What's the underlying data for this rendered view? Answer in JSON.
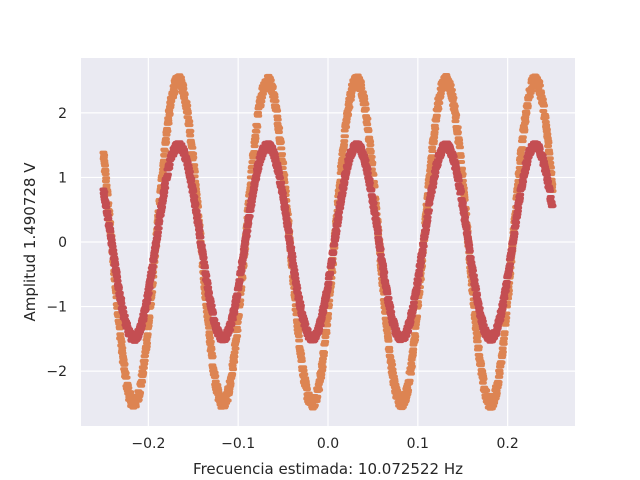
{
  "chart_data": {
    "type": "scatter",
    "title": "",
    "xlabel": "Frecuencia estimada: 10.072522 Hz",
    "ylabel": "Amplitud 1.490728 V",
    "xlim": [
      -0.275,
      0.275
    ],
    "ylim": [
      -2.85,
      2.85
    ],
    "x_ticks": [
      -0.2,
      -0.1,
      0.0,
      0.1,
      0.2
    ],
    "x_tick_labels": [
      "−0.2",
      "−0.1",
      "0.0",
      "0.1",
      "0.2"
    ],
    "y_ticks": [
      -2,
      -1,
      0,
      1,
      2
    ],
    "y_tick_labels": [
      "−2",
      "−1",
      "0",
      "1",
      "2"
    ],
    "grid": true,
    "legend": "none",
    "x_range": [
      -0.25,
      0.25
    ],
    "series": [
      {
        "model": "sine",
        "amplitude": 2.5,
        "frequency": 10.0725,
        "phase_rad": -0.46,
        "noise_band": 0.09,
        "color": "#dd8452"
      },
      {
        "model": "sine",
        "amplitude": 1.490728,
        "frequency": 10.072522,
        "phase_rad": -0.46,
        "noise_band": 0.06,
        "color": "#c44e52"
      }
    ]
  },
  "style": {
    "plot_background": "#eaeaf2",
    "grid_color": "#ffffff",
    "text_color": "#262626"
  }
}
